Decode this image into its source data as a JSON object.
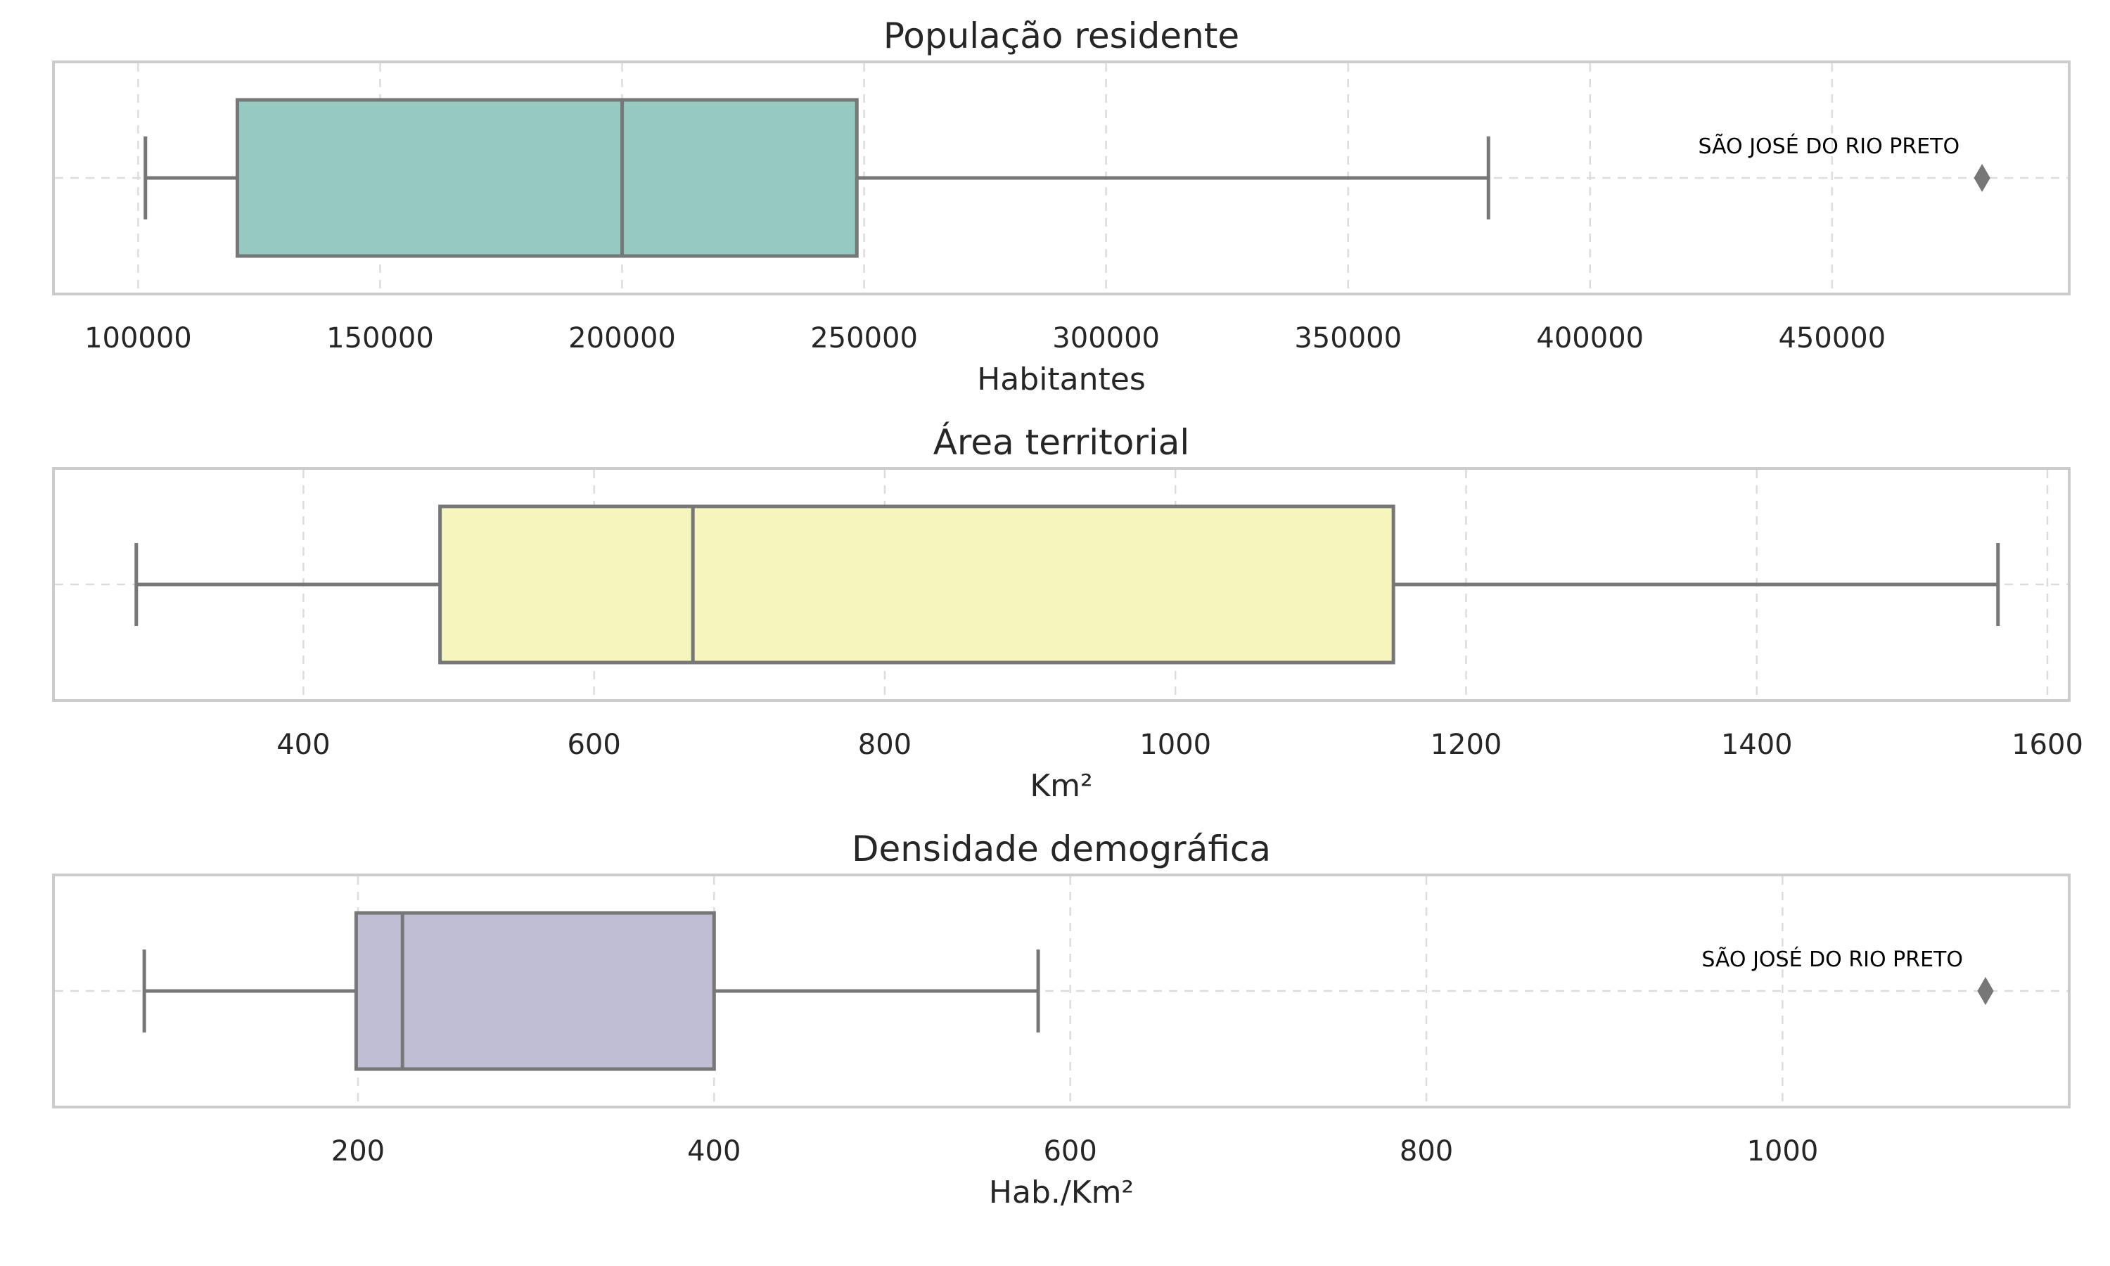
{
  "chart_data": [
    {
      "type": "boxplot",
      "title": "População residente",
      "xlabel": "Habitantes",
      "xlim": [
        82500,
        499000
      ],
      "xticks": [
        100000,
        150000,
        200000,
        250000,
        300000,
        350000,
        400000,
        450000
      ],
      "tick_labels": [
        "100000",
        "150000",
        "200000",
        "250000",
        "300000",
        "350000",
        "400000",
        "450000"
      ],
      "box": {
        "whisker_low": 101500,
        "q1": 120500,
        "median": 200000,
        "q3": 248500,
        "whisker_high": 379000,
        "color": "#96c9bf"
      },
      "outliers": [
        {
          "value": 481000,
          "label": "SÃO JOSÉ DO RIO PRETO"
        }
      ],
      "grid": true
    },
    {
      "type": "boxplot",
      "title": "Área territorial",
      "xlabel": "Km²",
      "xlim": [
        228,
        1615
      ],
      "xticks": [
        400,
        600,
        800,
        1000,
        1200,
        1400,
        1600
      ],
      "tick_labels": [
        "400",
        "600",
        "800",
        "1000",
        "1200",
        "1400",
        "1600"
      ],
      "box": {
        "whisker_low": 285,
        "q1": 494,
        "median": 668,
        "q3": 1150,
        "whisker_high": 1566,
        "color": "#f5f5bd"
      },
      "outliers": [],
      "grid": true
    },
    {
      "type": "boxplot",
      "title": "Densidade demográfica",
      "xlabel": "Hab./Km²",
      "xlim": [
        29,
        1161
      ],
      "xticks": [
        200,
        400,
        600,
        800,
        1000
      ],
      "tick_labels": [
        "200",
        "400",
        "600",
        "800",
        "1000"
      ],
      "box": {
        "whisker_low": 80,
        "q1": 199,
        "median": 225,
        "q3": 400,
        "whisker_high": 582,
        "color": "#c0bed5"
      },
      "outliers": [
        {
          "value": 1114,
          "label": "SÃO JOSÉ DO RIO PRETO"
        }
      ],
      "grid": true
    }
  ],
  "colors": {
    "frame": "#cccccc",
    "grid": "#dddddd",
    "lines": "#777777",
    "text": "#262626"
  }
}
